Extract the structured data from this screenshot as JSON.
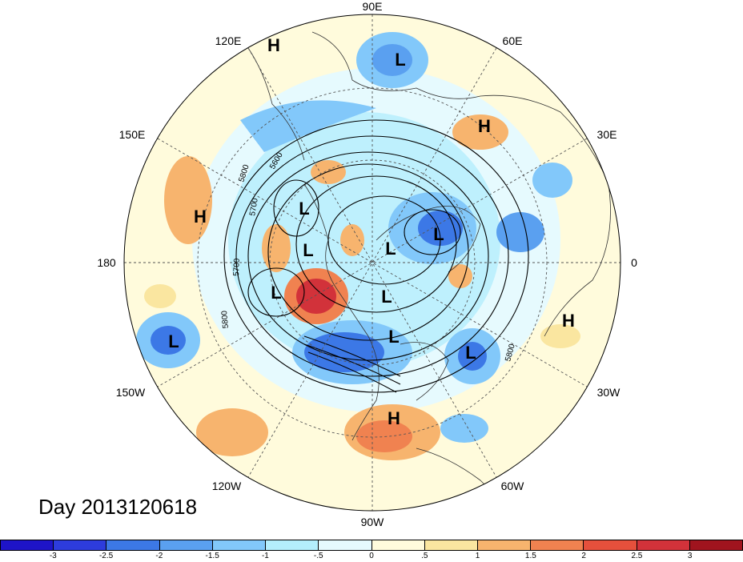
{
  "title": "Day 2013120618",
  "longitude_labels": [
    {
      "text": "90E",
      "key": "n"
    },
    {
      "text": "60E",
      "key": "ne1"
    },
    {
      "text": "120E",
      "key": "nw1"
    },
    {
      "text": "30E",
      "key": "ne2"
    },
    {
      "text": "150E",
      "key": "nw2"
    },
    {
      "text": "0",
      "key": "e"
    },
    {
      "text": "180",
      "key": "w"
    },
    {
      "text": "30W",
      "key": "se2"
    },
    {
      "text": "150W",
      "key": "sw2"
    },
    {
      "text": "60W",
      "key": "se1"
    },
    {
      "text": "120W",
      "key": "sw1"
    },
    {
      "text": "90W",
      "key": "s"
    }
  ],
  "pressure_centers": [
    {
      "type": "H",
      "key": "h1"
    },
    {
      "type": "H",
      "key": "h2"
    },
    {
      "type": "H",
      "key": "h3"
    },
    {
      "type": "H",
      "key": "h4"
    },
    {
      "type": "H",
      "key": "h5"
    },
    {
      "type": "L",
      "key": "l1"
    },
    {
      "type": "L",
      "key": "l2"
    },
    {
      "type": "L",
      "key": "l3"
    },
    {
      "type": "L",
      "key": "l4"
    },
    {
      "type": "L",
      "key": "l5"
    },
    {
      "type": "L",
      "key": "l6"
    },
    {
      "type": "L",
      "key": "l7"
    },
    {
      "type": "L",
      "key": "l8"
    },
    {
      "type": "L",
      "key": "l9"
    },
    {
      "type": "L",
      "key": "l10"
    }
  ],
  "contour_labels": [
    "5800",
    "5700",
    "5600",
    "5700",
    "5800",
    "5800"
  ],
  "colorbar": {
    "colors": [
      "#1e14c8",
      "#2d3cdc",
      "#3c78e6",
      "#5aa0f0",
      "#82c8fa",
      "#b4eefc",
      "#e6fafe",
      "#fffbdc",
      "#fae6a0",
      "#f7b46e",
      "#f08250",
      "#e6503c",
      "#d2323a",
      "#a0141e"
    ],
    "tick_labels": [
      "-3",
      "-2.5",
      "-2",
      "-1.5",
      "-1",
      "-.5",
      "0",
      ".5",
      "1",
      "1.5",
      "2",
      "2.5",
      "3"
    ]
  }
}
